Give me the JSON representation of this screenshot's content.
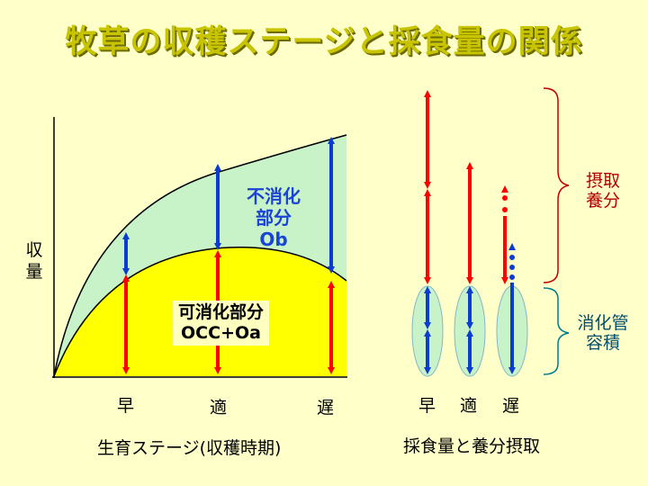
{
  "title": "牧草の収穫ステージと採食量の関係",
  "left_chart": {
    "y_label": [
      "収",
      "量"
    ],
    "x_ticks": [
      "早",
      "適",
      "遅"
    ],
    "x_label": "生育ステージ(収穫時期)",
    "indigestible": [
      "不消化",
      "部分",
      "Ob"
    ],
    "digestible": [
      "可消化部分",
      "OCC+Oa"
    ]
  },
  "right_chart": {
    "x_ticks": [
      "早",
      "適",
      "遅"
    ],
    "x_label": "採食量と養分摂取",
    "intake_label": [
      "摂取",
      "養分"
    ],
    "capacity_label": [
      "消化管",
      "容積"
    ]
  },
  "colors": {
    "background": "#FFFFC9",
    "title": "#C8C400",
    "digestible_fill": "#FFFF00",
    "indigestible_fill": "#C8F2C8",
    "red_arrow": "#FF0000",
    "blue_arrow": "#0A3CD2",
    "intake_brace": "#C00000",
    "capacity_brace": "#007A8C"
  }
}
